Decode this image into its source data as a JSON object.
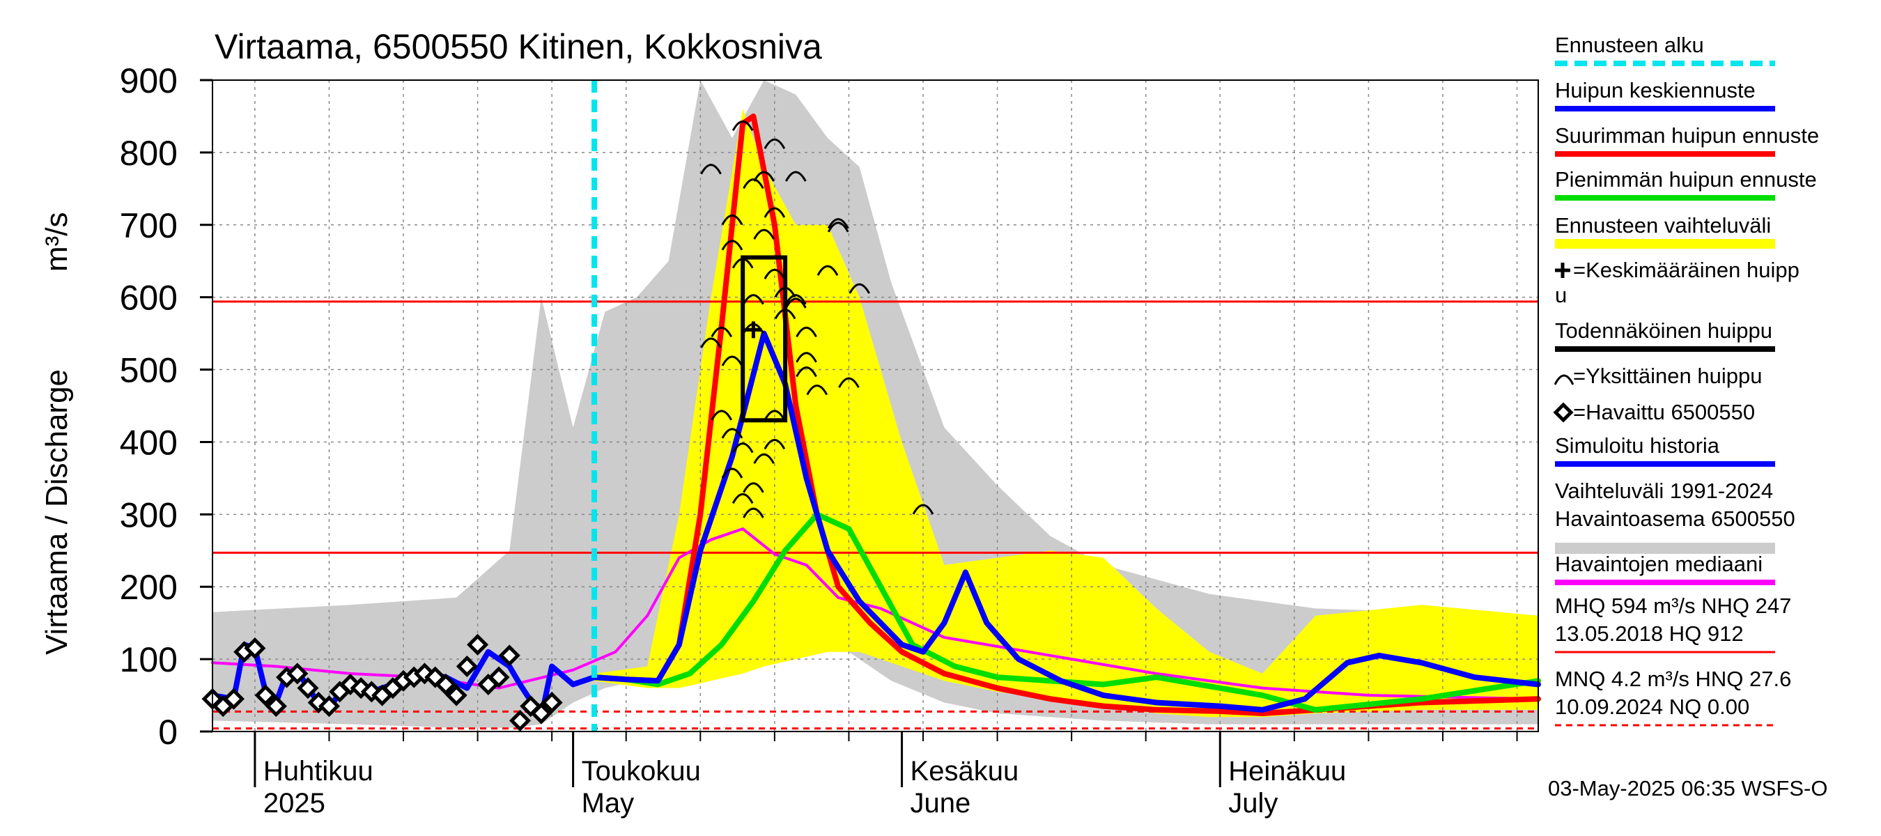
{
  "title": "Virtaama, 6500550 Kitinen, Kokkosniva",
  "y_axis_label": "Virtaama / Discharge",
  "y_unit": "m³/s",
  "y_ticks": [
    "0",
    "100",
    "200",
    "300",
    "400",
    "500",
    "600",
    "700",
    "800",
    "900"
  ],
  "month_labels": [
    {
      "fi": "Huhtikuu",
      "en": "2025",
      "date": "2025-04-01"
    },
    {
      "fi": "Toukokuu",
      "en": "May",
      "date": "2025-05-01"
    },
    {
      "fi": "Kesäkuu",
      "en": "June",
      "date": "2025-06-01"
    },
    {
      "fi": "Heinäkuu",
      "en": "July",
      "date": "2025-07-01"
    }
  ],
  "legend": [
    {
      "label": "Ennusteen alku",
      "type": "dashline",
      "color": "#00e5ee"
    },
    {
      "label": "Huipun keskiennuste",
      "type": "line",
      "color": "#0000ff"
    },
    {
      "label": "Suurimman huipun ennuste",
      "type": "line",
      "color": "#ff0000"
    },
    {
      "label": "Pienimmän huipun ennuste",
      "type": "line",
      "color": "#00dd00"
    },
    {
      "label": "Ennusteen vaihteluväli",
      "type": "line",
      "color": "#ffff00"
    },
    {
      "label": "=Keskimääräinen huipp",
      "label2": "u",
      "type": "plus"
    },
    {
      "label": "Todennäköinen huippu",
      "type": "line",
      "color": "#000000"
    },
    {
      "label": "=Yksittäinen huippu",
      "type": "arc"
    },
    {
      "label": "=Havaittu 6500550",
      "type": "diamond"
    },
    {
      "label": "Simuloitu historia",
      "type": "line",
      "color": "#0000ff"
    },
    {
      "label": "Vaihteluväli 1991-2024",
      "label2": " Havaintoasema 6500550",
      "type": "line",
      "color": "#cccccc"
    },
    {
      "label": "Havaintojen mediaani",
      "type": "line",
      "color": "#ff00ff"
    },
    {
      "label": "MHQ  594 m³/s NHQ  247",
      "label2": "13.05.2018 HQ  912",
      "type": "line",
      "color": "#ff0000"
    },
    {
      "label": "MNQ  4.2 m³/s HNQ 27.6",
      "label2": "10.09.2024 NQ 0.00",
      "type": "dashline",
      "color": "#ff0000"
    }
  ],
  "footer": "03-May-2025 06:35 WSFS-O",
  "chart_data": {
    "type": "line",
    "x_start": "2025-03-28",
    "x_end": "2025-07-31",
    "ylim": [
      0,
      900
    ],
    "grid": true,
    "forecast_start": "2025-05-03",
    "reference_lines": [
      {
        "name": "MHQ",
        "value": 594,
        "style": "solid",
        "color": "#ff0000"
      },
      {
        "name": "NHQ",
        "value": 247,
        "style": "solid",
        "color": "#ff0000"
      },
      {
        "name": "HNQ",
        "value": 27.6,
        "style": "dashed",
        "color": "#ff0000"
      },
      {
        "name": "MNQ",
        "value": 4.2,
        "style": "dashed",
        "color": "#ff0000"
      }
    ],
    "series": [
      {
        "name": "Vaihteluväli 1991-2024",
        "kind": "band",
        "color": "#cccccc",
        "x": [
          "2025-03-28",
          "2025-04-10",
          "2025-04-20",
          "2025-04-25",
          "2025-04-28",
          "2025-05-01",
          "2025-05-04",
          "2025-05-07",
          "2025-05-10",
          "2025-05-13",
          "2025-05-16",
          "2025-05-19",
          "2025-05-22",
          "2025-05-25",
          "2025-05-28",
          "2025-05-31",
          "2025-06-05",
          "2025-06-10",
          "2025-06-15",
          "2025-06-20",
          "2025-06-30",
          "2025-07-10",
          "2025-07-20",
          "2025-07-31"
        ],
        "upper": [
          165,
          175,
          185,
          250,
          600,
          420,
          580,
          600,
          650,
          900,
          820,
          900,
          880,
          820,
          780,
          620,
          420,
          340,
          270,
          230,
          190,
          170,
          165,
          160
        ],
        "lower": [
          15,
          10,
          5,
          5,
          10,
          40,
          60,
          70,
          80,
          100,
          120,
          130,
          140,
          130,
          100,
          70,
          40,
          25,
          20,
          15,
          10,
          10,
          10,
          10
        ]
      },
      {
        "name": "Ennusteen vaihteluväli",
        "kind": "band",
        "color": "#ffff00",
        "x": [
          "2025-05-03",
          "2025-05-08",
          "2025-05-11",
          "2025-05-14",
          "2025-05-17",
          "2025-05-19",
          "2025-05-22",
          "2025-05-25",
          "2025-05-28",
          "2025-06-01",
          "2025-06-05",
          "2025-06-10",
          "2025-06-15",
          "2025-06-20",
          "2025-06-25",
          "2025-06-30",
          "2025-07-05",
          "2025-07-10",
          "2025-07-20",
          "2025-07-31"
        ],
        "upper": [
          80,
          90,
          300,
          600,
          860,
          780,
          700,
          700,
          600,
          400,
          230,
          240,
          250,
          240,
          170,
          110,
          80,
          160,
          175,
          160
        ],
        "lower": [
          70,
          60,
          60,
          70,
          80,
          90,
          100,
          110,
          110,
          90,
          70,
          55,
          45,
          35,
          25,
          20,
          20,
          25,
          30,
          30
        ]
      },
      {
        "name": "Havaintojen mediaani",
        "kind": "line",
        "color": "#ff00ff",
        "x": [
          "2025-03-28",
          "2025-04-03",
          "2025-04-10",
          "2025-04-17",
          "2025-04-24",
          "2025-05-01",
          "2025-05-05",
          "2025-05-08",
          "2025-05-11",
          "2025-05-14",
          "2025-05-17",
          "2025-05-20",
          "2025-05-23",
          "2025-05-26",
          "2025-05-30",
          "2025-06-05",
          "2025-06-15",
          "2025-06-25",
          "2025-07-05",
          "2025-07-15",
          "2025-07-31"
        ],
        "values": [
          95,
          90,
          80,
          75,
          60,
          85,
          110,
          160,
          240,
          265,
          280,
          245,
          230,
          185,
          170,
          130,
          105,
          80,
          60,
          50,
          45
        ]
      },
      {
        "name": "Suurimman huipun ennuste",
        "kind": "line",
        "color": "#ff0000",
        "x": [
          "2025-05-03",
          "2025-05-06",
          "2025-05-09",
          "2025-05-11",
          "2025-05-13",
          "2025-05-15",
          "2025-05-17",
          "2025-05-18",
          "2025-05-20",
          "2025-05-22",
          "2025-05-24",
          "2025-05-26",
          "2025-05-29",
          "2025-06-01",
          "2025-06-05",
          "2025-06-10",
          "2025-06-15",
          "2025-06-20",
          "2025-06-25",
          "2025-07-01",
          "2025-07-05",
          "2025-07-10",
          "2025-07-20",
          "2025-07-31"
        ],
        "values": [
          75,
          72,
          70,
          120,
          300,
          560,
          840,
          850,
          700,
          450,
          300,
          200,
          150,
          110,
          80,
          60,
          45,
          35,
          30,
          28,
          25,
          30,
          40,
          45
        ]
      },
      {
        "name": "Pienimmän huipun ennuste",
        "kind": "line",
        "color": "#00dd00",
        "x": [
          "2025-05-03",
          "2025-05-06",
          "2025-05-09",
          "2025-05-12",
          "2025-05-15",
          "2025-05-18",
          "2025-05-21",
          "2025-05-24",
          "2025-05-27",
          "2025-05-30",
          "2025-06-02",
          "2025-06-06",
          "2025-06-10",
          "2025-06-15",
          "2025-06-20",
          "2025-06-25",
          "2025-07-01",
          "2025-07-05",
          "2025-07-10",
          "2025-07-20",
          "2025-07-31"
        ],
        "values": [
          75,
          72,
          65,
          80,
          120,
          180,
          250,
          300,
          280,
          200,
          120,
          90,
          75,
          70,
          65,
          75,
          60,
          50,
          30,
          45,
          70
        ]
      },
      {
        "name": "Huipun keskiennuste",
        "kind": "line",
        "color": "#0000ff",
        "x": [
          "2025-05-03",
          "2025-05-06",
          "2025-05-09",
          "2025-05-11",
          "2025-05-13",
          "2025-05-16",
          "2025-05-19",
          "2025-05-21",
          "2025-05-23",
          "2025-05-25",
          "2025-05-28",
          "2025-06-01",
          "2025-06-03",
          "2025-06-05",
          "2025-06-07",
          "2025-06-09",
          "2025-06-12",
          "2025-06-16",
          "2025-06-20",
          "2025-06-25",
          "2025-07-01",
          "2025-07-05",
          "2025-07-09",
          "2025-07-13",
          "2025-07-16",
          "2025-07-20",
          "2025-07-25",
          "2025-07-31"
        ],
        "values": [
          75,
          72,
          70,
          120,
          250,
          380,
          550,
          480,
          350,
          250,
          180,
          120,
          110,
          150,
          220,
          150,
          100,
          70,
          50,
          40,
          35,
          30,
          45,
          95,
          105,
          95,
          75,
          65
        ]
      },
      {
        "name": "Simuloitu historia",
        "kind": "line",
        "color": "#0000ff",
        "x": [
          "2025-03-28",
          "2025-03-30",
          "2025-03-31",
          "2025-04-01",
          "2025-04-02",
          "2025-04-03",
          "2025-04-04",
          "2025-04-05",
          "2025-04-06",
          "2025-04-07",
          "2025-04-08",
          "2025-04-09",
          "2025-04-10",
          "2025-04-11",
          "2025-04-12",
          "2025-04-13",
          "2025-04-15",
          "2025-04-17",
          "2025-04-19",
          "2025-04-21",
          "2025-04-23",
          "2025-04-25",
          "2025-04-26",
          "2025-04-28",
          "2025-04-29",
          "2025-05-01",
          "2025-05-03"
        ],
        "values": [
          50,
          45,
          120,
          115,
          55,
          40,
          80,
          85,
          60,
          40,
          30,
          55,
          65,
          60,
          55,
          60,
          70,
          80,
          75,
          60,
          110,
          90,
          65,
          20,
          90,
          65,
          75
        ]
      },
      {
        "name": "Havaittu 6500550",
        "kind": "markers",
        "marker": "diamond",
        "x": [
          "2025-03-28",
          "2025-03-29",
          "2025-03-30",
          "2025-03-31",
          "2025-04-01",
          "2025-04-02",
          "2025-04-03",
          "2025-04-04",
          "2025-04-05",
          "2025-04-06",
          "2025-04-07",
          "2025-04-08",
          "2025-04-09",
          "2025-04-10",
          "2025-04-11",
          "2025-04-12",
          "2025-04-13",
          "2025-04-14",
          "2025-04-15",
          "2025-04-16",
          "2025-04-17",
          "2025-04-18",
          "2025-04-19",
          "2025-04-20",
          "2025-04-21",
          "2025-04-22",
          "2025-04-23",
          "2025-04-24",
          "2025-04-25",
          "2025-04-26",
          "2025-04-27",
          "2025-04-28",
          "2025-04-29"
        ],
        "values": [
          45,
          35,
          45,
          110,
          115,
          50,
          35,
          75,
          80,
          60,
          40,
          35,
          55,
          65,
          60,
          55,
          50,
          60,
          70,
          75,
          80,
          75,
          65,
          50,
          90,
          120,
          65,
          75,
          105,
          15,
          35,
          25,
          40
        ]
      },
      {
        "name": "Yksittäinen huippu",
        "kind": "markers",
        "marker": "arc",
        "points": [
          [
            "2025-05-14",
            780
          ],
          [
            "2025-05-16",
            710
          ],
          [
            "2025-05-17",
            840
          ],
          [
            "2025-05-16",
            675
          ],
          [
            "2025-05-17",
            650
          ],
          [
            "2025-05-15",
            555
          ],
          [
            "2025-05-14",
            540
          ],
          [
            "2025-05-16",
            515
          ],
          [
            "2025-05-15",
            440
          ],
          [
            "2025-05-16",
            415
          ],
          [
            "2025-05-17",
            395
          ],
          [
            "2025-05-16",
            360
          ],
          [
            "2025-05-17",
            325
          ],
          [
            "2025-05-18",
            305
          ],
          [
            "2025-05-18",
            560
          ],
          [
            "2025-05-18",
            600
          ],
          [
            "2025-05-18",
            760
          ],
          [
            "2025-05-19",
            690
          ],
          [
            "2025-05-20",
            720
          ],
          [
            "2025-05-20",
            815
          ],
          [
            "2025-05-19",
            770
          ],
          [
            "2025-05-20",
            635
          ],
          [
            "2025-05-21",
            610
          ],
          [
            "2025-05-21",
            580
          ],
          [
            "2025-05-22",
            770
          ],
          [
            "2025-05-22",
            600
          ],
          [
            "2025-05-22",
            595
          ],
          [
            "2025-05-23",
            555
          ],
          [
            "2025-05-23",
            520
          ],
          [
            "2025-05-24",
            475
          ],
          [
            "2025-05-23",
            500
          ],
          [
            "2025-05-25",
            640
          ],
          [
            "2025-05-26",
            700
          ],
          [
            "2025-05-26",
            705
          ],
          [
            "2025-05-27",
            485
          ],
          [
            "2025-05-28",
            615
          ],
          [
            "2025-05-20",
            440
          ],
          [
            "2025-05-20",
            400
          ],
          [
            "2025-05-19",
            380
          ],
          [
            "2025-05-18",
            340
          ],
          [
            "2025-06-03",
            310
          ]
        ]
      },
      {
        "name": "Keskimääräinen huippu",
        "kind": "markers",
        "marker": "plus",
        "points": [
          [
            "2025-05-18",
            555
          ]
        ]
      },
      {
        "name": "Todennäköinen huippu",
        "kind": "box",
        "x0": "2025-05-17",
        "x1": "2025-05-21",
        "y0": 430,
        "y1": 655
      }
    ]
  }
}
